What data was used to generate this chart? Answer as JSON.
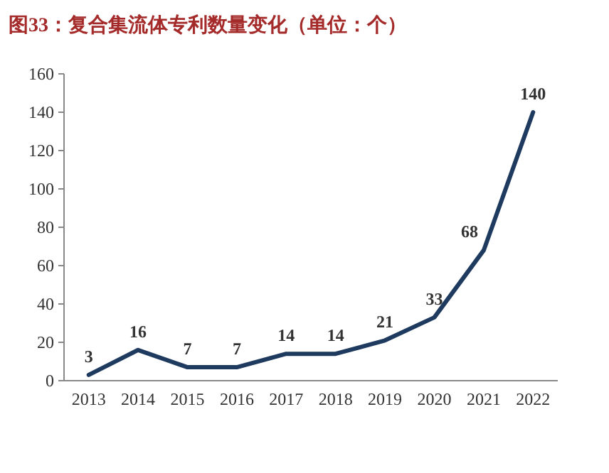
{
  "chart_data": {
    "type": "line",
    "title": "图33：复合集流体专利数量变化（单位：个）",
    "categories": [
      "2013",
      "2014",
      "2015",
      "2016",
      "2017",
      "2018",
      "2019",
      "2020",
      "2021",
      "2022"
    ],
    "series": [
      {
        "color": "#1f3a5f",
        "values": [
          3,
          16,
          7,
          7,
          14,
          14,
          21,
          33,
          68,
          140
        ]
      }
    ],
    "ylim": [
      0,
      160
    ],
    "yticks": [
      0,
      20,
      40,
      60,
      80,
      100,
      120,
      140,
      160
    ],
    "data_labels": true,
    "grid": false,
    "marker": "none",
    "line_style": "solid"
  }
}
